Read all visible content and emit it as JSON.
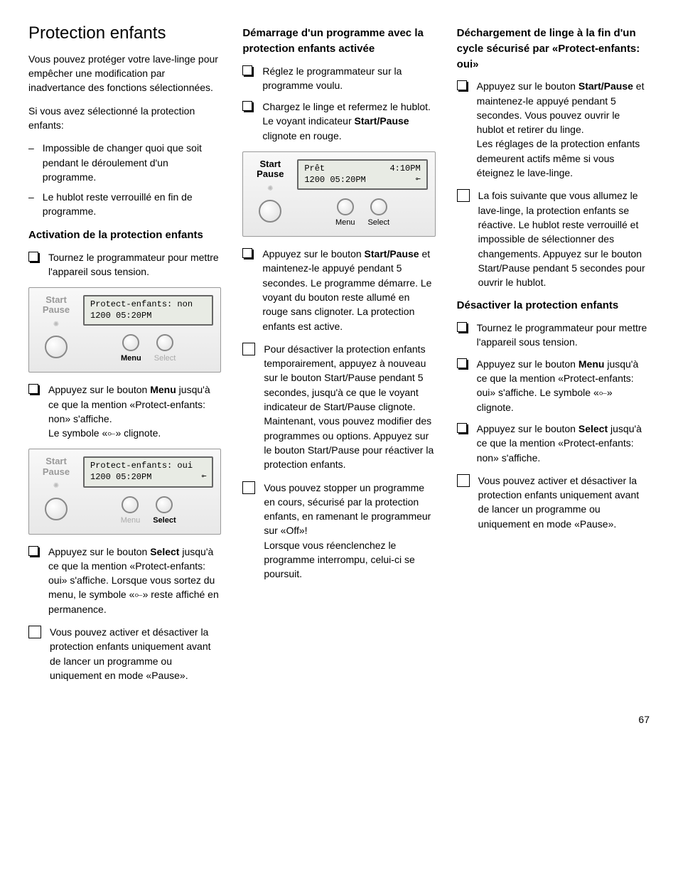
{
  "col1": {
    "title": "Protection enfants",
    "intro1": "Vous pouvez protéger votre lave-linge pour empêcher une modification par inadvertance des fonctions sélectionnées.",
    "intro2": "Si vous avez sélectionné la protection enfants:",
    "dash1": "Impossible de changer quoi que soit pendant le déroulement d'un programme.",
    "dash2": "Le hublot reste verrouillé en fin de programme.",
    "h2a": "Activation de la protection enfants",
    "step1": "Tournez le programmateur pour mettre l'appareil sous tension.",
    "panel1": {
      "start": "Start",
      "pause": "Pause",
      "lcd_l1": "Protect-enfants: non",
      "lcd_l2": "1200 05:20PM",
      "menuLabel": "Menu",
      "selectLabel": "Select"
    },
    "step2a": "Appuyez sur le bouton ",
    "step2b": "Menu",
    "step2c": " jusqu'à ce que la mention «Protect-enfants: non» s'affiche.",
    "step2d": "Le symbole «⟜» clignote.",
    "panel2": {
      "start": "Start",
      "pause": "Pause",
      "lcd_l1": "Protect-enfants: oui",
      "lcd_l2_left": "1200 05:20PM",
      "lcd_l2_right": "⟜",
      "menuLabel": "Menu",
      "selectLabel": "Select"
    },
    "step3a": "Appuyez sur le bouton ",
    "step3b": "Select",
    "step3c": " jusqu'à ce que la mention «Protect-enfants: oui» s'affiche. Lorsque vous sortez du menu, le symbole «⟜» reste affiché en permanence.",
    "note1": "Vous pouvez activer et désactiver la protection enfants uniquement avant de lancer un programme ou uniquement en mode «Pause»."
  },
  "col2": {
    "h2a": "Démarrage d'un programme avec la protection enfants activée",
    "step1": "Réglez le programmateur sur la programme voulu.",
    "step2a": "Chargez le linge et refermez le hublot.",
    "step2b_pre": "Le voyant indicateur ",
    "step2b_bold": "Start/Pause",
    "step2b_post": " clignote en rouge.",
    "panel1": {
      "start": "Start",
      "pause": "Pause",
      "lcd_l1_left": "Prêt",
      "lcd_l1_right": "4:10PM",
      "lcd_l2_left": "1200 05:20PM",
      "lcd_l2_right": "⟜",
      "menuLabel": "Menu",
      "selectLabel": "Select"
    },
    "step3a": "Appuyez sur le bouton ",
    "step3b": "Start/Pause",
    "step3c": " et maintenez-le appuyé pendant 5 secondes. Le programme démarre. Le voyant du bouton reste allumé en rouge sans clignoter. La protection enfants est active.",
    "note1": "Pour désactiver la protection enfants temporairement, appuyez à nouveau sur le bouton Start/Pause pendant 5 secondes, jusqu'à ce que le voyant indicateur de Start/Pause clignote. Maintenant, vous pouvez modifier des programmes ou options. Appuyez sur le bouton Start/Pause pour réactiver la protection enfants.",
    "note2a": "Vous pouvez stopper un programme en cours, sécurisé par la protection enfants, en ramenant le programmeur sur «Off»!",
    "note2b": "Lorsque vous réenclenchez le programme interrompu, celui-ci se poursuit."
  },
  "col3": {
    "h2a": "Déchargement de linge à la fin d'un cycle sécurisé par «Protect-enfants: oui»",
    "step1a": "Appuyez sur le bouton ",
    "step1b": "Start/Pause",
    "step1c": " et maintenez-le appuyé pendant 5 secondes. Vous pouvez ouvrir le hublot et retirer du linge.",
    "step1d": "Les réglages de la protection enfants demeurent actifs même si vous éteignez le lave-linge.",
    "note1": "La fois suivante que vous allumez le lave-linge, la protection enfants se réactive. Le hublot reste verrouillé et impossible de sélectionner des changements. Appuyez sur le bouton Start/Pause pendant 5 secondes pour ouvrir le hublot.",
    "h2b": "Désactiver la protection enfants",
    "step2": "Tournez le programmateur pour mettre l'appareil sous tension.",
    "step3a": "Appuyez sur le bouton ",
    "step3b": "Menu",
    "step3c": " jusqu'à ce que la mention «Protect-enfants: oui» s'affiche. Le symbole «⟜» clignote.",
    "step4a": "Appuyez sur le bouton ",
    "step4b": "Select",
    "step4c": " jusqu'à ce que la mention «Protect-enfants: non» s'affiche.",
    "note2": "Vous pouvez activer et désactiver la protection enfants uniquement avant de lancer un programme ou uniquement en mode «Pause»."
  },
  "pagenum": "67"
}
